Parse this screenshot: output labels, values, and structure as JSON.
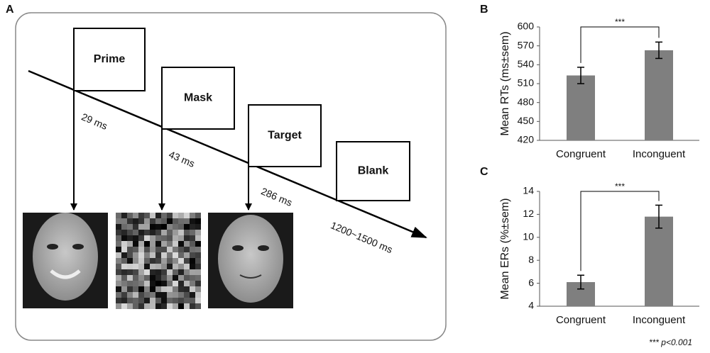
{
  "diagram": {
    "label": "A",
    "frames": [
      {
        "label": "Prime",
        "duration": "29 ms"
      },
      {
        "label": "Mask",
        "duration": "43 ms"
      },
      {
        "label": "Target",
        "duration": "286 ms"
      },
      {
        "label": "Blank",
        "duration": "1200~1500 ms"
      }
    ]
  },
  "footnote": "*** p<0.001",
  "chart_data": [
    {
      "type": "bar",
      "label": "B",
      "ylabel": "Mean RTs (ms±sem)",
      "categories": [
        "Congruent",
        "Inconguent"
      ],
      "values": [
        523,
        563
      ],
      "errors": [
        13,
        13
      ],
      "color": "#7f7f7f",
      "ylim": [
        420,
        600
      ],
      "yticks": [
        420,
        450,
        480,
        510,
        540,
        570,
        600
      ],
      "significance": "***"
    },
    {
      "type": "bar",
      "label": "C",
      "ylabel": "Mean ERs (%±sem)",
      "categories": [
        "Congruent",
        "Inconguent"
      ],
      "values": [
        6.1,
        11.8
      ],
      "errors": [
        0.6,
        1.0
      ],
      "color": "#7f7f7f",
      "ylim": [
        4,
        14
      ],
      "yticks": [
        4,
        6,
        8,
        10,
        12,
        14
      ],
      "significance": "***"
    }
  ]
}
